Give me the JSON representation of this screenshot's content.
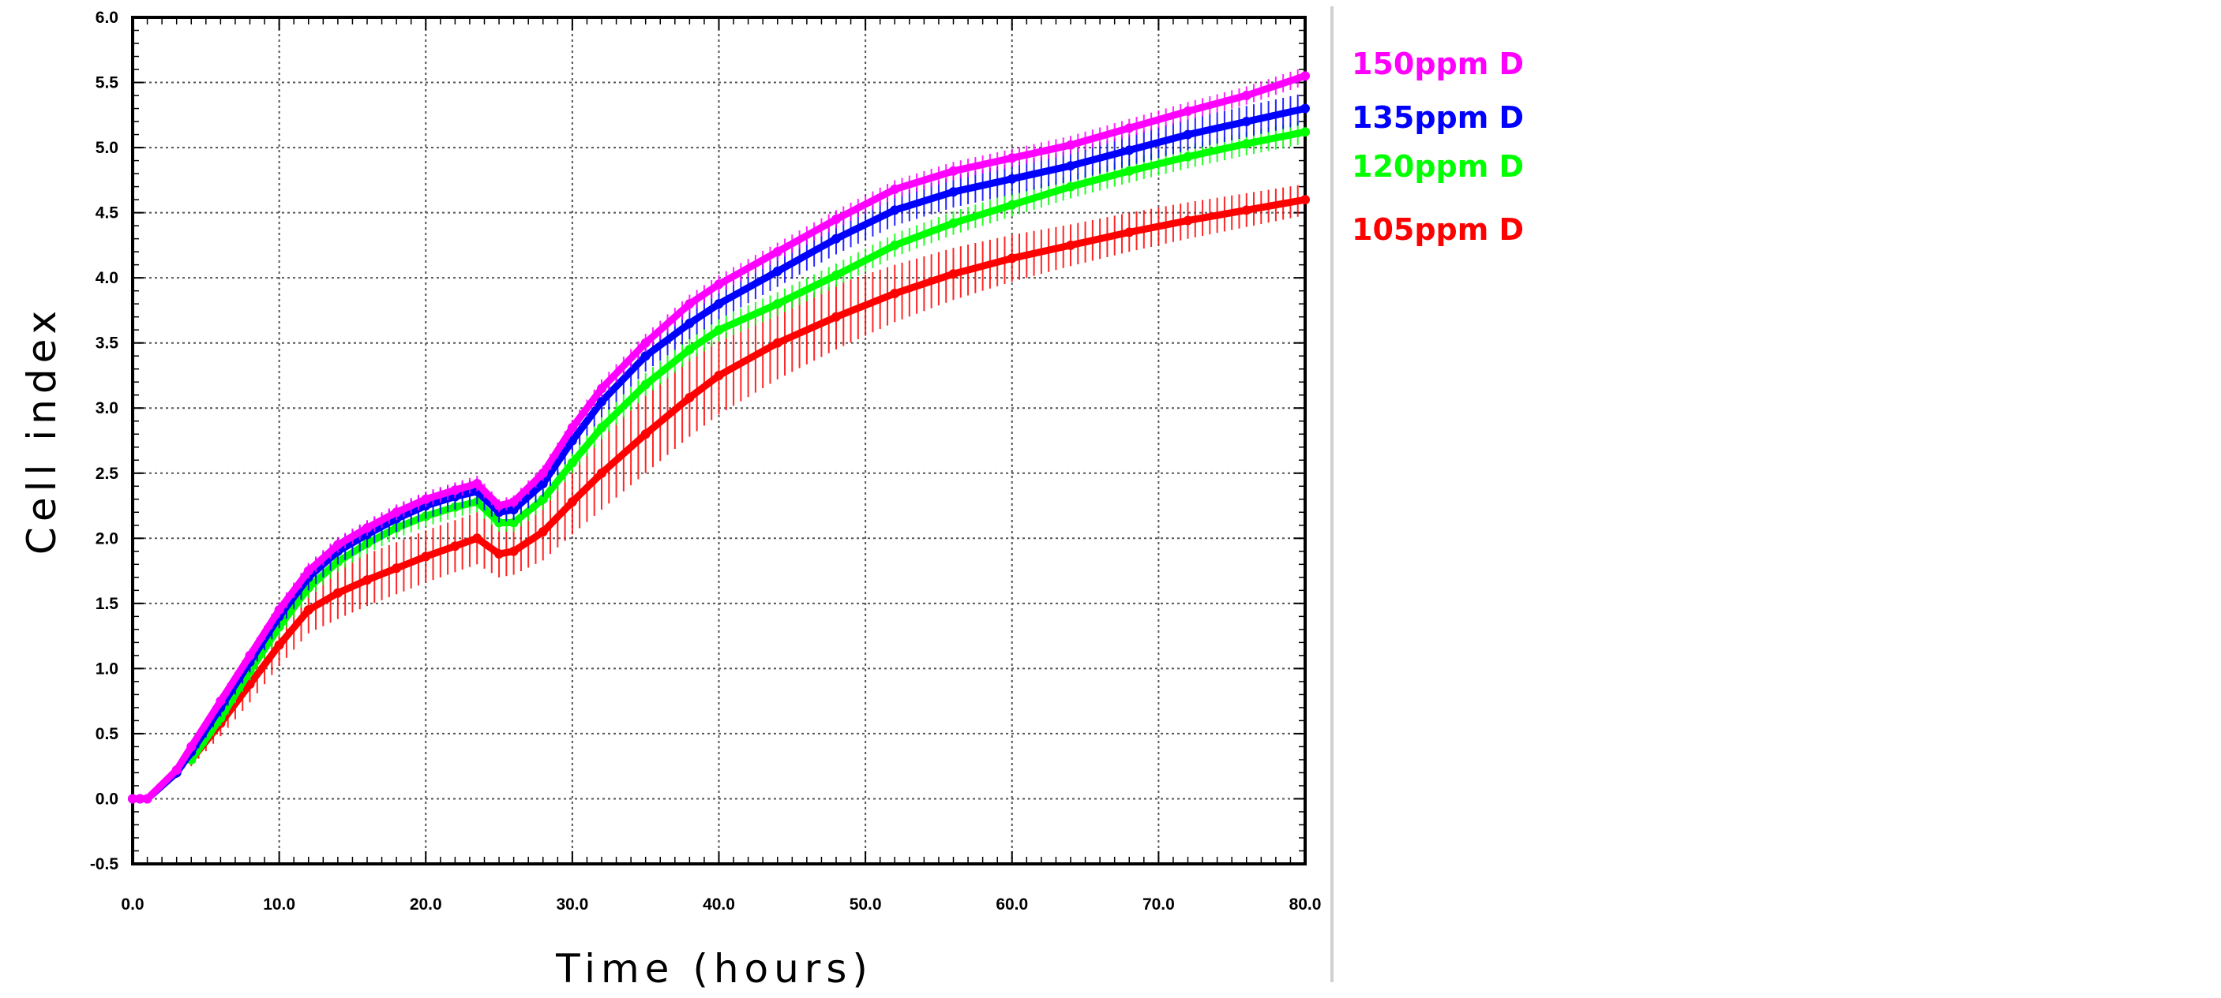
{
  "chart_data": {
    "type": "line",
    "title": "",
    "xlabel": "Time (hours)",
    "ylabel": "Cell index",
    "xlim": [
      0,
      80
    ],
    "ylim": [
      -0.5,
      6.0
    ],
    "x_ticks": [
      "0.0",
      "10.0",
      "20.0",
      "30.0",
      "40.0",
      "50.0",
      "60.0",
      "70.0",
      "80.0"
    ],
    "y_ticks": [
      "-0.5",
      "0.0",
      "0.5",
      "1.0",
      "1.5",
      "2.0",
      "2.5",
      "3.0",
      "3.5",
      "4.0",
      "4.5",
      "5.0",
      "5.5",
      "6.0"
    ],
    "grid": true,
    "legend_position": "right",
    "series": [
      {
        "name": "150ppm D",
        "color": "#ff00ff",
        "x": [
          0,
          0.5,
          1,
          3,
          4,
          6,
          8,
          10,
          12,
          14,
          16,
          18,
          20,
          22,
          23.5,
          25,
          26,
          28,
          30,
          32,
          35,
          38,
          40,
          44,
          48,
          52,
          56,
          60,
          64,
          68,
          72,
          76,
          80
        ],
        "y": [
          0.0,
          0.0,
          0.0,
          0.22,
          0.4,
          0.75,
          1.1,
          1.45,
          1.75,
          1.95,
          2.08,
          2.2,
          2.3,
          2.37,
          2.42,
          2.25,
          2.28,
          2.5,
          2.85,
          3.15,
          3.5,
          3.8,
          3.95,
          4.2,
          4.45,
          4.68,
          4.82,
          4.92,
          5.02,
          5.15,
          5.28,
          5.4,
          5.55
        ],
        "err": [
          0.02,
          0.02,
          0.02,
          0.03,
          0.04,
          0.05,
          0.05,
          0.06,
          0.06,
          0.06,
          0.06,
          0.06,
          0.06,
          0.06,
          0.06,
          0.05,
          0.05,
          0.06,
          0.06,
          0.07,
          0.07,
          0.07,
          0.07,
          0.07,
          0.07,
          0.07,
          0.07,
          0.07,
          0.07,
          0.07,
          0.07,
          0.07,
          0.07
        ]
      },
      {
        "name": "135ppm D",
        "color": "#0000ff",
        "x": [
          0,
          0.5,
          1,
          3,
          4,
          6,
          8,
          10,
          12,
          14,
          16,
          18,
          20,
          22,
          23.5,
          25,
          26,
          28,
          30,
          32,
          35,
          38,
          40,
          44,
          48,
          52,
          56,
          60,
          64,
          68,
          72,
          76,
          80
        ],
        "y": [
          0.0,
          0.0,
          0.0,
          0.2,
          0.36,
          0.7,
          1.05,
          1.4,
          1.7,
          1.9,
          2.03,
          2.15,
          2.25,
          2.32,
          2.36,
          2.2,
          2.22,
          2.42,
          2.75,
          3.05,
          3.4,
          3.65,
          3.8,
          4.05,
          4.3,
          4.52,
          4.66,
          4.76,
          4.86,
          4.98,
          5.1,
          5.2,
          5.3
        ],
        "err": [
          0.02,
          0.02,
          0.02,
          0.04,
          0.05,
          0.07,
          0.08,
          0.09,
          0.1,
          0.1,
          0.1,
          0.1,
          0.1,
          0.1,
          0.1,
          0.08,
          0.08,
          0.1,
          0.1,
          0.12,
          0.12,
          0.12,
          0.12,
          0.12,
          0.12,
          0.12,
          0.12,
          0.12,
          0.12,
          0.12,
          0.12,
          0.12,
          0.12
        ]
      },
      {
        "name": "120ppm D",
        "color": "#00ff00",
        "x": [
          4,
          6,
          8,
          10,
          12,
          14,
          16,
          18,
          20,
          22,
          23.5,
          25,
          26,
          28,
          30,
          32,
          35,
          38,
          40,
          44,
          48,
          52,
          56,
          60,
          64,
          68,
          72,
          76,
          80
        ],
        "y": [
          0.3,
          0.62,
          0.98,
          1.32,
          1.62,
          1.82,
          1.96,
          2.08,
          2.17,
          2.24,
          2.28,
          2.12,
          2.12,
          2.3,
          2.58,
          2.85,
          3.18,
          3.45,
          3.6,
          3.8,
          4.02,
          4.25,
          4.42,
          4.56,
          4.7,
          4.82,
          4.93,
          5.03,
          5.12
        ],
        "err": [
          0.04,
          0.06,
          0.07,
          0.08,
          0.08,
          0.08,
          0.08,
          0.08,
          0.08,
          0.08,
          0.08,
          0.07,
          0.07,
          0.08,
          0.08,
          0.09,
          0.09,
          0.09,
          0.09,
          0.09,
          0.09,
          0.09,
          0.09,
          0.09,
          0.09,
          0.09,
          0.09,
          0.09,
          0.09
        ]
      },
      {
        "name": "105ppm D",
        "color": "#ff0000",
        "x": [
          4,
          6,
          8,
          10,
          12,
          14,
          16,
          18,
          20,
          22,
          23.5,
          25,
          26,
          28,
          30,
          32,
          35,
          38,
          40,
          44,
          48,
          52,
          56,
          60,
          64,
          68,
          72,
          76,
          80
        ],
        "y": [
          0.3,
          0.58,
          0.88,
          1.18,
          1.45,
          1.58,
          1.68,
          1.77,
          1.86,
          1.94,
          2.0,
          1.88,
          1.9,
          2.05,
          2.28,
          2.5,
          2.8,
          3.08,
          3.25,
          3.5,
          3.7,
          3.88,
          4.03,
          4.15,
          4.25,
          4.35,
          4.44,
          4.52,
          4.6
        ],
        "err": [
          0.05,
          0.1,
          0.14,
          0.16,
          0.18,
          0.2,
          0.2,
          0.2,
          0.2,
          0.2,
          0.2,
          0.18,
          0.18,
          0.22,
          0.25,
          0.28,
          0.3,
          0.3,
          0.3,
          0.28,
          0.25,
          0.22,
          0.2,
          0.18,
          0.16,
          0.15,
          0.14,
          0.13,
          0.12
        ]
      }
    ]
  }
}
